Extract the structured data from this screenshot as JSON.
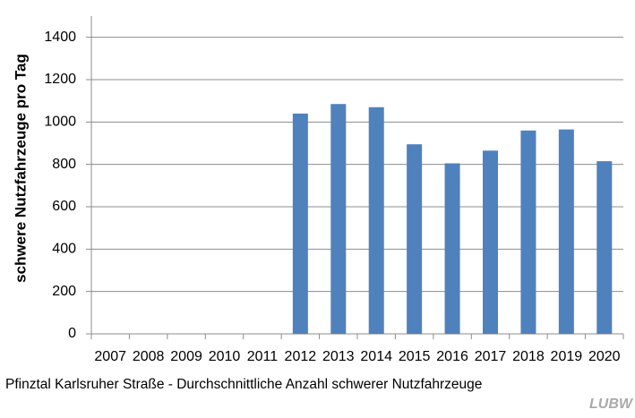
{
  "chart_data": {
    "type": "bar",
    "y_label": "schwere Nutzfahrzeuge pro Tag",
    "caption": "Pfinztal Karlsruher Straße - Durchschnittliche Anzahl schwerer Nutzfahrzeuge",
    "logo": "LUBW",
    "categories": [
      "2007",
      "2008",
      "2009",
      "2010",
      "2011",
      "2012",
      "2013",
      "2014",
      "2015",
      "2016",
      "2017",
      "2018",
      "2019",
      "2020"
    ],
    "values": [
      null,
      null,
      null,
      null,
      null,
      1040,
      1085,
      1070,
      895,
      805,
      865,
      960,
      965,
      815
    ],
    "color": "#4f81bd",
    "ylim": [
      0,
      1500
    ],
    "yticks": [
      0,
      200,
      400,
      600,
      800,
      1000,
      1200,
      1400
    ],
    "grid": true
  }
}
